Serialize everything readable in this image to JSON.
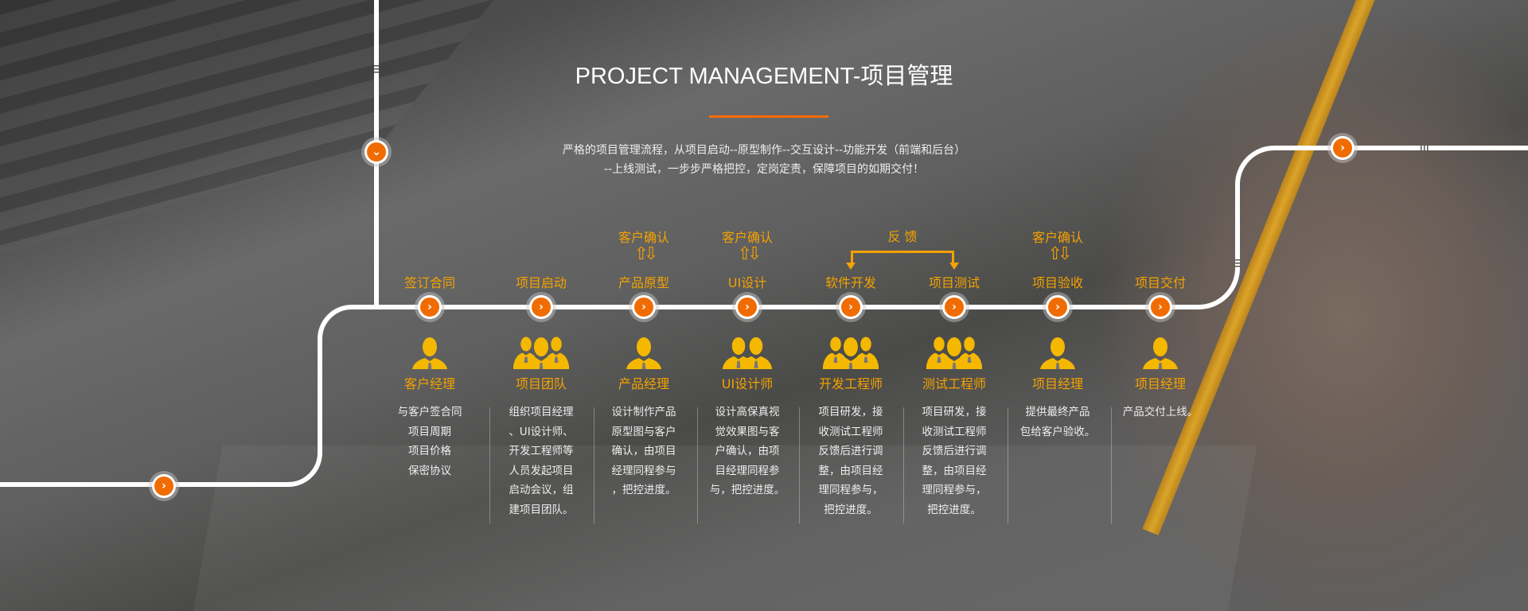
{
  "header": {
    "title": "PROJECT MANAGEMENT-项目管理",
    "subtitle_lines": [
      "严格的项目管理流程，从项目启动--原型制作--交互设计--功能开发（前端和后台）",
      "--上线测试，一步步严格把控，定岗定责，保障项目的如期交付！"
    ]
  },
  "feedback_label": "反 馈",
  "colors": {
    "accent": "#f06c00",
    "label": "#f5a200",
    "icon": "#f5b800",
    "track": "#ffffff"
  },
  "steps": [
    {
      "label": "签订合同",
      "confirm": "",
      "role": "客户经理",
      "icon": "single-person-icon",
      "desc": [
        "与客户签合同",
        "项目周期",
        "项目价格",
        "保密协议"
      ]
    },
    {
      "label": "项目启动",
      "confirm": "",
      "role": "项目团队",
      "icon": "three-people-icon",
      "desc": [
        "组织项目经理",
        "、UI设计师、",
        "开发工程师等",
        "人员发起项目",
        "启动会议，组",
        "建项目团队。"
      ]
    },
    {
      "label": "产品原型",
      "confirm": "客户确认",
      "role": "产品经理",
      "icon": "single-person-icon",
      "desc": [
        "设计制作产品",
        "原型图与客户",
        "确认，由项目",
        "经理同程参与",
        "，把控进度。"
      ]
    },
    {
      "label": "UI设计",
      "confirm": "客户确认",
      "role": "UI设计师",
      "icon": "two-people-icon",
      "desc": [
        "设计高保真视",
        "觉效果图与客",
        "户确认，由项",
        "目经理同程参",
        "与，把控进度。"
      ]
    },
    {
      "label": "软件开发",
      "confirm": "",
      "role": "开发工程师",
      "icon": "three-people-icon",
      "desc": [
        "项目研发，接",
        "收测试工程师",
        "反馈后进行调",
        "整，由项目经",
        "理同程参与，",
        "把控进度。"
      ]
    },
    {
      "label": "项目测试",
      "confirm": "",
      "role": "测试工程师",
      "icon": "three-people-icon",
      "desc": [
        "项目研发，接",
        "收测试工程师",
        "反馈后进行调",
        "整，由项目经",
        "理同程参与，",
        "把控进度。"
      ]
    },
    {
      "label": "项目验收",
      "confirm": "客户确认",
      "role": "项目经理",
      "icon": "single-person-icon",
      "desc": [
        "提供最终产品",
        "包给客户验收。"
      ]
    },
    {
      "label": "项目交付",
      "confirm": "",
      "role": "项目经理",
      "icon": "single-person-icon",
      "desc": [
        "产品交付上线。"
      ]
    }
  ]
}
